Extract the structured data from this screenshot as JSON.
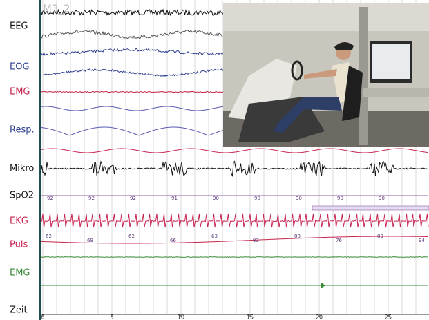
{
  "header": {
    "montage": "M3_2"
  },
  "channels": [
    {
      "label": "EEG",
      "color": "#111111"
    },
    {
      "label": "EOG",
      "color": "#2f3f8f"
    },
    {
      "label": "EMG",
      "color": "#c8244e"
    },
    {
      "label": "Resp.",
      "color": "#2f3f8f"
    },
    {
      "label": "Mikro",
      "color": "#111111"
    },
    {
      "label": "SpO2",
      "color": "#111111"
    },
    {
      "label": "EKG",
      "color": "#c8244e"
    },
    {
      "label": "Puls",
      "color": "#c8244e"
    },
    {
      "label": "EMG",
      "color": "#3a8a3a"
    },
    {
      "label": "Zeit",
      "color": "#111111"
    }
  ],
  "spo2_values": [
    "92",
    "92",
    "92",
    "91",
    "90",
    "90",
    "90",
    "90",
    "90"
  ],
  "pulse_values": [
    "62",
    "69",
    "62",
    "66",
    "63",
    "93",
    "88",
    "76",
    "83",
    "94"
  ],
  "time_axis": {
    "ticks": [
      0,
      5,
      10,
      15,
      20,
      25
    ]
  }
}
